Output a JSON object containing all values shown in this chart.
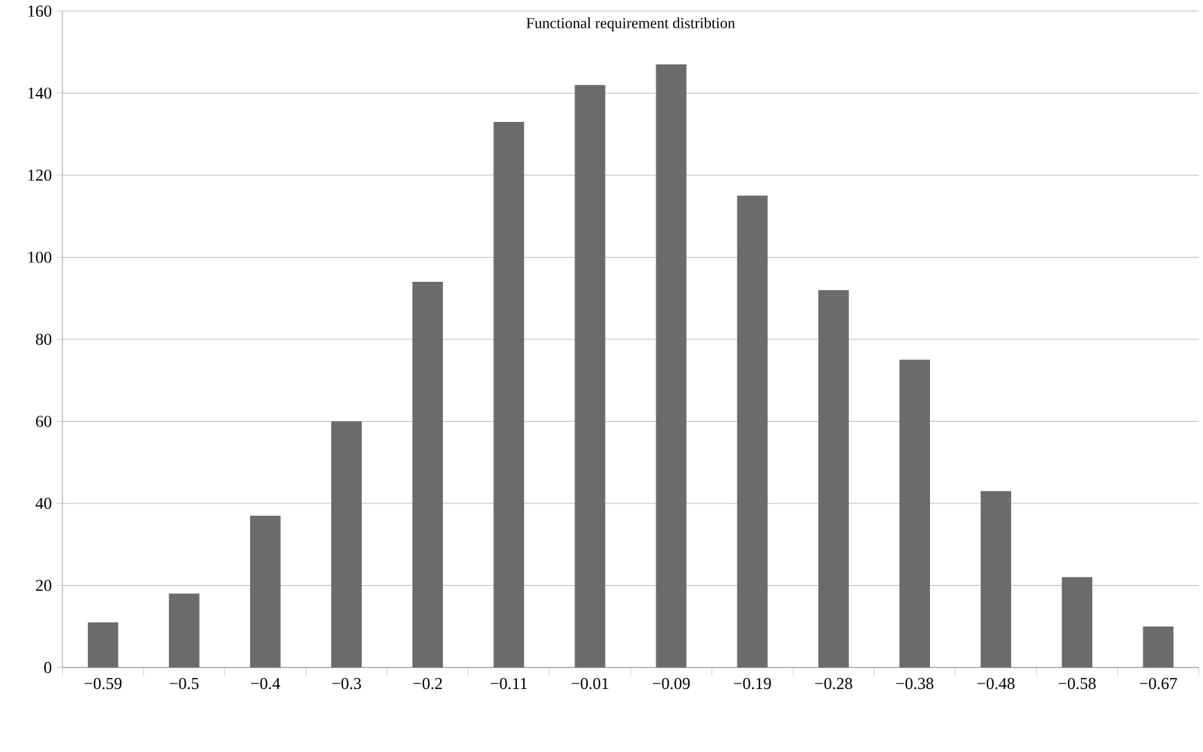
{
  "chart_data": {
    "type": "bar",
    "title": "Functional requirement distribtion",
    "categories": [
      "−0.59",
      "−0.5",
      "−0.4",
      "−0.3",
      "−0.2",
      "−0.11",
      "−0.01",
      "−0.09",
      "−0.19",
      "−0.28",
      "−0.38",
      "−0.48",
      "−0.58",
      "−0.67"
    ],
    "values": [
      11,
      18,
      37,
      60,
      94,
      133,
      142,
      147,
      115,
      92,
      75,
      43,
      22,
      10
    ],
    "color": "#6b6b6b",
    "ylim": [
      0,
      160
    ],
    "yticks": [
      0,
      20,
      40,
      60,
      80,
      100,
      120,
      140,
      160
    ],
    "grid": "y"
  }
}
